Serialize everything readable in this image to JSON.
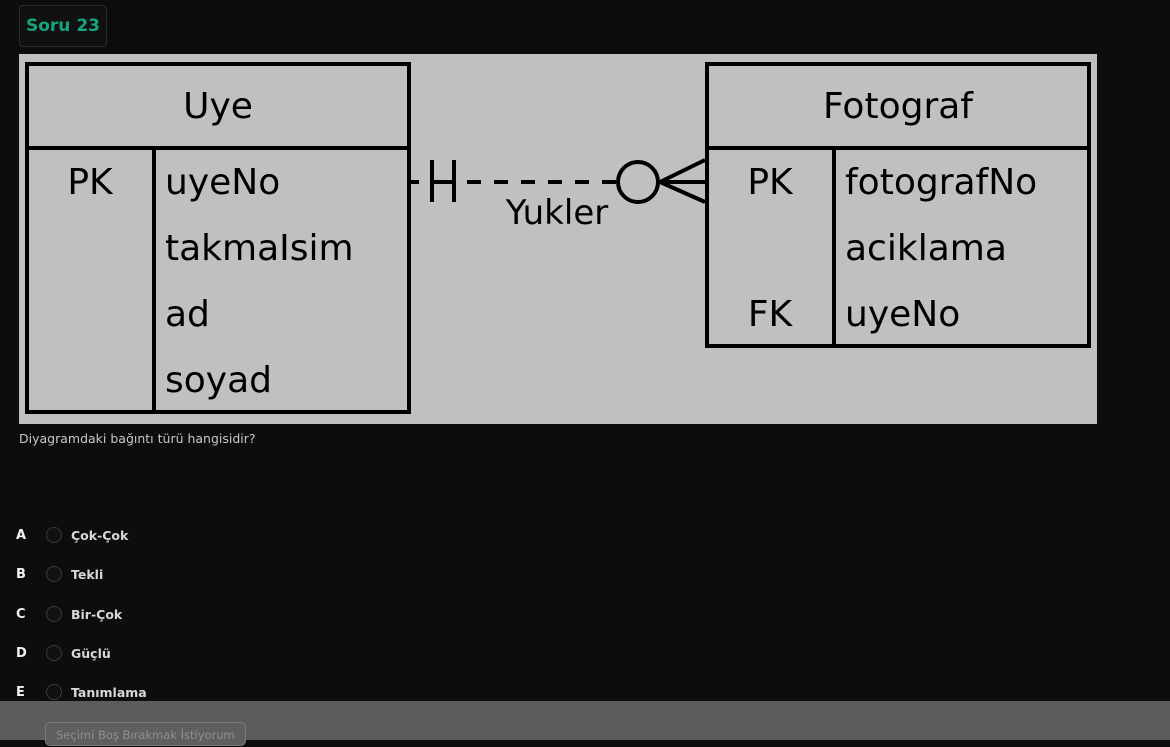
{
  "question": {
    "badge": "Soru 23",
    "text": "Diyagramdaki bağıntı türü hangisidir?"
  },
  "diagram": {
    "left_entity": {
      "title": "Uye",
      "keys": [
        "PK",
        "",
        "",
        ""
      ],
      "attributes": [
        "uyeNo",
        "takmaIsim",
        "ad",
        "soyad"
      ]
    },
    "right_entity": {
      "title": "Fotograf",
      "keys": [
        "PK",
        "",
        "FK"
      ],
      "attributes": [
        "fotografNo",
        "aciklama",
        "uyeNo"
      ]
    },
    "relationship_label": "Yukler"
  },
  "options": [
    {
      "letter": "A",
      "text": "Çok-Çok"
    },
    {
      "letter": "B",
      "text": "Tekli"
    },
    {
      "letter": "C",
      "text": "Bir-Çok"
    },
    {
      "letter": "D",
      "text": "Güçlü"
    },
    {
      "letter": "E",
      "text": "Tanımlama"
    }
  ],
  "footer": {
    "leave_blank_label": "Seçimi Boş Bırakmak İstiyorum"
  }
}
